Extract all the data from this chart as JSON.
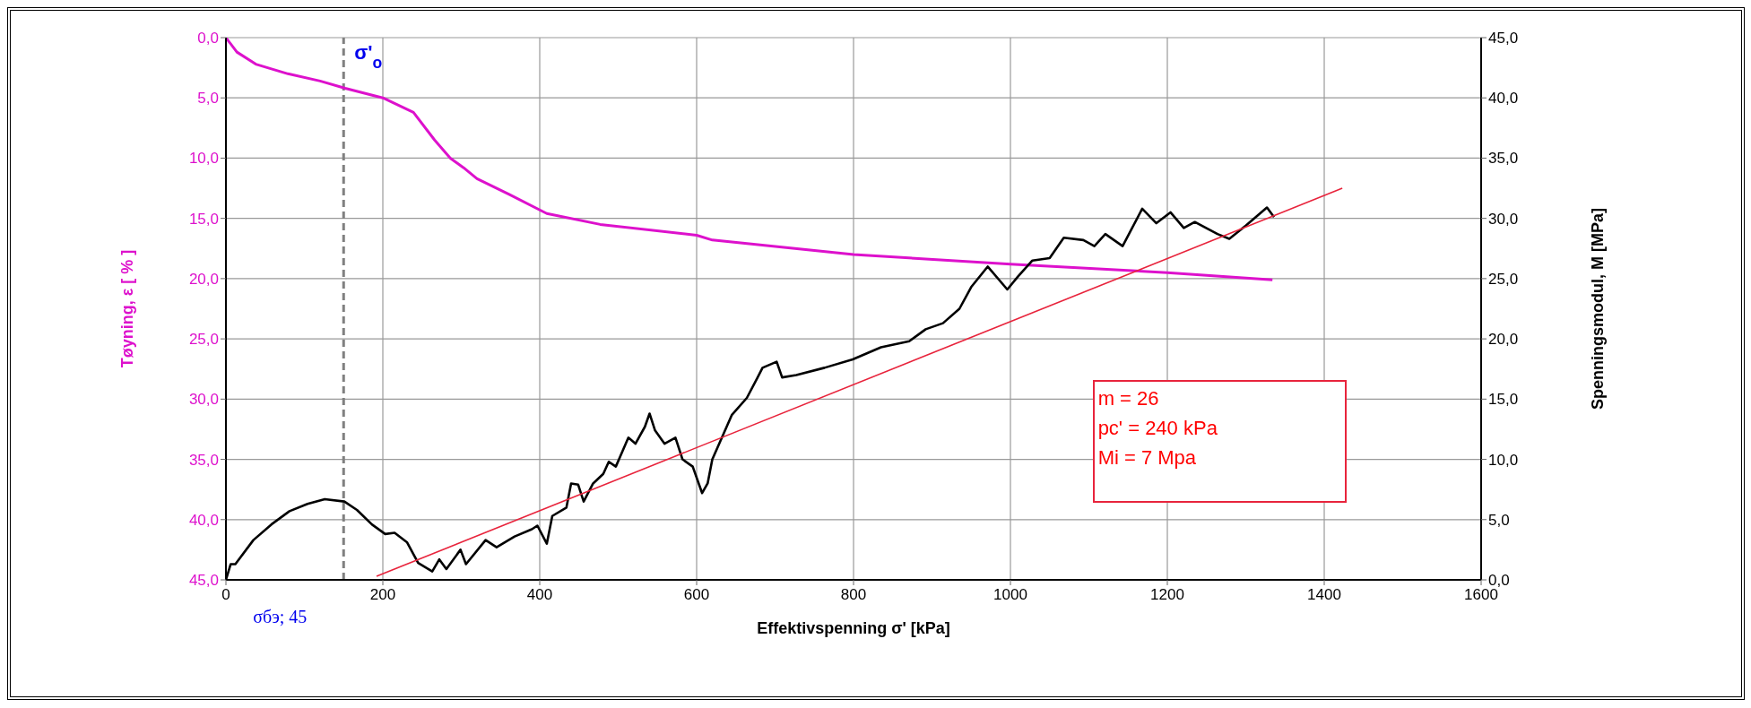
{
  "chart_data": {
    "type": "line",
    "xlabel": "Effektivspenning σ' [kPa]",
    "ylabel": "Tøyning,  ε [ % ]",
    "y2label": "Spenningsmodul,  M  [MPa]",
    "xlim": [
      0,
      1600
    ],
    "xticks": [
      0,
      200,
      400,
      600,
      800,
      1000,
      1200,
      1400,
      1600
    ],
    "ylim": [
      45,
      0
    ],
    "yticks": [
      {
        "value": 0,
        "label": "0,0"
      },
      {
        "value": 5,
        "label": "5,0"
      },
      {
        "value": 10,
        "label": "10,0"
      },
      {
        "value": 15,
        "label": "15,0"
      },
      {
        "value": 20,
        "label": "20,0"
      },
      {
        "value": 25,
        "label": "25,0"
      },
      {
        "value": 30,
        "label": "30,0"
      },
      {
        "value": 35,
        "label": "35,0"
      },
      {
        "value": 40,
        "label": "40,0"
      },
      {
        "value": 45,
        "label": "45,0"
      }
    ],
    "y2lim": [
      0,
      45
    ],
    "y2ticks": [
      {
        "value": 0,
        "label": "0,0"
      },
      {
        "value": 5,
        "label": "5,0"
      },
      {
        "value": 10,
        "label": "10,0"
      },
      {
        "value": 15,
        "label": "15,0"
      },
      {
        "value": 20,
        "label": "20,0"
      },
      {
        "value": 25,
        "label": "25,0"
      },
      {
        "value": 30,
        "label": "30,0"
      },
      {
        "value": 35,
        "label": "35,0"
      },
      {
        "value": 40,
        "label": "40,0"
      },
      {
        "value": 45,
        "label": "45,0"
      }
    ],
    "grid": true,
    "marker": "none",
    "line_style": "solid",
    "series": [
      {
        "color": "#dd11cc",
        "x": [
          0,
          14,
          38,
          79,
          120,
          152,
          200,
          239,
          266,
          286,
          303,
          320,
          361,
          409,
          477,
          600,
          620,
          800,
          1000,
          1200,
          1334
        ],
        "values": [
          0,
          1.2,
          2.2,
          3.0,
          3.6,
          4.2,
          5.0,
          6.2,
          8.5,
          10.0,
          10.8,
          11.7,
          13.0,
          14.6,
          15.5,
          16.4,
          16.8,
          18.0,
          18.8,
          19.5,
          20.1
        ]
      },
      {
        "color": "#000000",
        "axis": "y2",
        "x": [
          0,
          6,
          12,
          35,
          58,
          81,
          104,
          126,
          151,
          167,
          186,
          203,
          215,
          231,
          245,
          263,
          272,
          281,
          299,
          306,
          331,
          345,
          368,
          390,
          397,
          409,
          416,
          434,
          440,
          449,
          456,
          468,
          481,
          488,
          497,
          513,
          522,
          534,
          540,
          547,
          559,
          573,
          582,
          595,
          607,
          614,
          620,
          645,
          664,
          677,
          684,
          702,
          709,
          727,
          763,
          799,
          835,
          871,
          892,
          914,
          935,
          950,
          971,
          996,
          1010,
          1028,
          1050,
          1068,
          1093,
          1107,
          1121,
          1143,
          1168,
          1186,
          1204,
          1221,
          1235,
          1264,
          1279,
          1300,
          1327,
          1336
        ],
        "values": [
          0,
          1.3,
          1.3,
          3.3,
          4.6,
          5.7,
          6.3,
          6.7,
          6.5,
          5.8,
          4.6,
          3.8,
          3.9,
          3.1,
          1.4,
          0.7,
          1.7,
          0.9,
          2.5,
          1.3,
          3.3,
          2.7,
          3.6,
          4.2,
          4.5,
          3.0,
          5.3,
          6.0,
          8.0,
          7.9,
          6.5,
          8.0,
          8.8,
          9.8,
          9.4,
          11.8,
          11.3,
          12.7,
          13.8,
          12.4,
          11.3,
          11.8,
          10.0,
          9.4,
          7.2,
          8.0,
          10.0,
          13.7,
          15.1,
          16.7,
          17.6,
          18.1,
          16.8,
          17.0,
          17.6,
          18.3,
          19.3,
          19.8,
          20.8,
          21.3,
          22.5,
          24.3,
          26.0,
          24.1,
          25.2,
          26.5,
          26.7,
          28.4,
          28.2,
          27.7,
          28.7,
          27.7,
          30.8,
          29.6,
          30.5,
          29.2,
          29.7,
          28.7,
          28.3,
          29.4,
          30.9,
          30.1
        ]
      },
      {
        "color": "#e8243c",
        "axis": "y2",
        "x": [
          192,
          1423
        ],
        "values": [
          0.3,
          32.5
        ]
      }
    ],
    "ref_lines": [
      {
        "axis": "x",
        "value": 150,
        "label": "σ'$_{o}$",
        "color": "#808080",
        "line_style": "dashed"
      }
    ],
    "annotations": [
      "m = 26",
      "pc' = 240 kPa",
      "Mi = 7 Mpa",
      "σбэ; 45"
    ]
  }
}
